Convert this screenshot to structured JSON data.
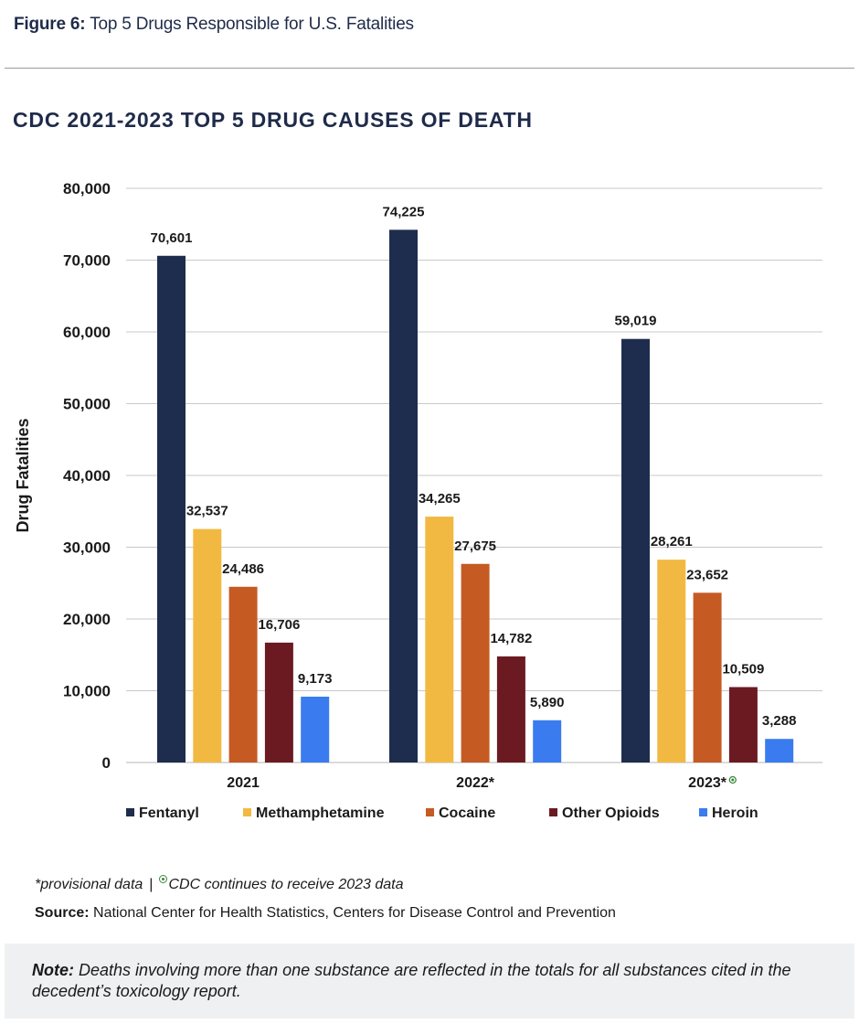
{
  "figure": {
    "label": "Figure 6:",
    "caption": "Top 5 Drugs Responsible for U.S. Fatalities"
  },
  "chart_data": {
    "type": "bar",
    "title": "CDC 2021-2023 TOP 5 DRUG CAUSES OF DEATH",
    "xlabel": "",
    "ylabel": "Drug Fatalities",
    "ylim": [
      0,
      80000
    ],
    "yticks": [
      "0",
      "10,000",
      "20,000",
      "30,000",
      "40,000",
      "50,000",
      "60,000",
      "70,000",
      "80,000"
    ],
    "grid": true,
    "legend_position": "bottom",
    "categories": [
      "2021",
      "2022*",
      "2023*"
    ],
    "series": [
      {
        "name": "Fentanyl",
        "color": "#1e2d4e",
        "values": [
          70601,
          74225,
          59019
        ],
        "labels": [
          "70,601",
          "74,225",
          "59,019"
        ]
      },
      {
        "name": "Methamphetamine",
        "color": "#f2b942",
        "values": [
          32537,
          34265,
          28261
        ],
        "labels": [
          "32,537",
          "34,265",
          "28,261"
        ]
      },
      {
        "name": "Cocaine",
        "color": "#c55a23",
        "values": [
          24486,
          27675,
          23652
        ],
        "labels": [
          "24,486",
          "27,675",
          "23,652"
        ]
      },
      {
        "name": "Other Opioids",
        "color": "#6b1a22",
        "values": [
          16706,
          14782,
          10509
        ],
        "labels": [
          "16,706",
          "14,782",
          "10,509"
        ]
      },
      {
        "name": "Heroin",
        "color": "#3a7bf0",
        "values": [
          9173,
          5890,
          3288
        ],
        "labels": [
          "9,173",
          "5,890",
          "3,288"
        ]
      }
    ]
  },
  "footnote": {
    "provisional": "*provisional data",
    "separator": "|",
    "cdc_note": "CDC continues to receive 2023 data"
  },
  "source": {
    "label": "Source:",
    "text": "National Center for Health Statistics, Centers for Disease Control and Prevention"
  },
  "note": {
    "label": "Note:",
    "text": "Deaths involving more than one substance are reflected in the totals for all substances cited in the decedent’s toxicology report."
  }
}
